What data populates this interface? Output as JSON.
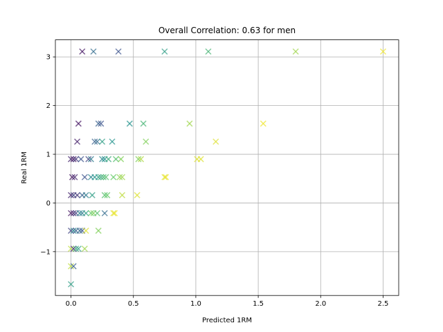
{
  "chart_data": {
    "type": "scatter",
    "title": "Overall Correlation: 0.63 for men",
    "xlabel": "Predicted 1RM",
    "ylabel": "Real 1RM",
    "xlim": [
      -0.125,
      2.625
    ],
    "ylim": [
      -1.9,
      3.35
    ],
    "xticks": [
      0.0,
      0.5,
      1.0,
      1.5,
      2.0,
      2.5
    ],
    "xtick_labels": [
      "0.0",
      "0.5",
      "1.0",
      "1.5",
      "2.0",
      "2.5"
    ],
    "yticks": [
      -1,
      0,
      1,
      2,
      3
    ],
    "ytick_labels": [
      "−1",
      "0",
      "1",
      "2",
      "3"
    ],
    "grid": true,
    "marker": "x",
    "colormap": "viridis",
    "points": [
      {
        "x": 0.09,
        "y": 3.11,
        "c": 0.05
      },
      {
        "x": 0.18,
        "y": 3.11,
        "c": 0.35
      },
      {
        "x": 0.38,
        "y": 3.11,
        "c": 0.25
      },
      {
        "x": 0.75,
        "y": 3.11,
        "c": 0.55
      },
      {
        "x": 1.1,
        "y": 3.11,
        "c": 0.65
      },
      {
        "x": 1.8,
        "y": 3.11,
        "c": 0.85
      },
      {
        "x": 2.5,
        "y": 3.11,
        "c": 0.98
      },
      {
        "x": 0.06,
        "y": 1.63,
        "c": 0.05
      },
      {
        "x": 0.22,
        "y": 1.63,
        "c": 0.3
      },
      {
        "x": 0.24,
        "y": 1.63,
        "c": 0.25
      },
      {
        "x": 0.47,
        "y": 1.63,
        "c": 0.5
      },
      {
        "x": 0.58,
        "y": 1.63,
        "c": 0.65
      },
      {
        "x": 0.95,
        "y": 1.63,
        "c": 0.85
      },
      {
        "x": 1.54,
        "y": 1.63,
        "c": 0.98
      },
      {
        "x": 0.05,
        "y": 1.26,
        "c": 0.08
      },
      {
        "x": 0.19,
        "y": 1.26,
        "c": 0.3
      },
      {
        "x": 0.21,
        "y": 1.26,
        "c": 0.35
      },
      {
        "x": 0.25,
        "y": 1.26,
        "c": 0.55
      },
      {
        "x": 0.33,
        "y": 1.26,
        "c": 0.5
      },
      {
        "x": 0.6,
        "y": 1.26,
        "c": 0.8
      },
      {
        "x": 1.16,
        "y": 1.26,
        "c": 0.95
      },
      {
        "x": 0.0,
        "y": 0.9,
        "c": 0.1
      },
      {
        "x": 0.02,
        "y": 0.9,
        "c": 0.05
      },
      {
        "x": 0.04,
        "y": 0.9,
        "c": 0.15
      },
      {
        "x": 0.08,
        "y": 0.9,
        "c": 0.25
      },
      {
        "x": 0.14,
        "y": 0.9,
        "c": 0.2
      },
      {
        "x": 0.16,
        "y": 0.9,
        "c": 0.4
      },
      {
        "x": 0.25,
        "y": 0.9,
        "c": 0.45
      },
      {
        "x": 0.27,
        "y": 0.9,
        "c": 0.5
      },
      {
        "x": 0.3,
        "y": 0.9,
        "c": 0.6
      },
      {
        "x": 0.36,
        "y": 0.9,
        "c": 0.7
      },
      {
        "x": 0.4,
        "y": 0.9,
        "c": 0.8
      },
      {
        "x": 0.54,
        "y": 0.9,
        "c": 0.8
      },
      {
        "x": 0.56,
        "y": 0.9,
        "c": 0.88
      },
      {
        "x": 1.01,
        "y": 0.9,
        "c": 0.95
      },
      {
        "x": 1.04,
        "y": 0.9,
        "c": 0.95
      },
      {
        "x": 0.01,
        "y": 0.53,
        "c": 0.05
      },
      {
        "x": 0.03,
        "y": 0.53,
        "c": 0.1
      },
      {
        "x": 0.11,
        "y": 0.53,
        "c": 0.25
      },
      {
        "x": 0.16,
        "y": 0.53,
        "c": 0.45
      },
      {
        "x": 0.19,
        "y": 0.53,
        "c": 0.5
      },
      {
        "x": 0.22,
        "y": 0.53,
        "c": 0.55
      },
      {
        "x": 0.24,
        "y": 0.53,
        "c": 0.6
      },
      {
        "x": 0.26,
        "y": 0.53,
        "c": 0.65
      },
      {
        "x": 0.28,
        "y": 0.53,
        "c": 0.7
      },
      {
        "x": 0.34,
        "y": 0.53,
        "c": 0.75
      },
      {
        "x": 0.39,
        "y": 0.53,
        "c": 0.82
      },
      {
        "x": 0.41,
        "y": 0.53,
        "c": 0.85
      },
      {
        "x": 0.75,
        "y": 0.53,
        "c": 0.95
      },
      {
        "x": 0.76,
        "y": 0.53,
        "c": 0.98
      },
      {
        "x": 0.0,
        "y": 0.16,
        "c": 0.1
      },
      {
        "x": 0.02,
        "y": 0.16,
        "c": 0.2
      },
      {
        "x": 0.05,
        "y": 0.16,
        "c": 0.15
      },
      {
        "x": 0.09,
        "y": 0.16,
        "c": 0.3
      },
      {
        "x": 0.12,
        "y": 0.16,
        "c": 0.4
      },
      {
        "x": 0.17,
        "y": 0.16,
        "c": 0.55
      },
      {
        "x": 0.27,
        "y": 0.16,
        "c": 0.7
      },
      {
        "x": 0.29,
        "y": 0.16,
        "c": 0.75
      },
      {
        "x": 0.41,
        "y": 0.16,
        "c": 0.9
      },
      {
        "x": 0.53,
        "y": 0.16,
        "c": 0.95
      },
      {
        "x": 0.0,
        "y": -0.21,
        "c": 0.05
      },
      {
        "x": 0.02,
        "y": -0.21,
        "c": 0.1
      },
      {
        "x": 0.04,
        "y": -0.21,
        "c": 0.2
      },
      {
        "x": 0.07,
        "y": -0.21,
        "c": 0.45
      },
      {
        "x": 0.09,
        "y": -0.21,
        "c": 0.4
      },
      {
        "x": 0.12,
        "y": -0.21,
        "c": 0.55
      },
      {
        "x": 0.16,
        "y": -0.21,
        "c": 0.75
      },
      {
        "x": 0.18,
        "y": -0.21,
        "c": 0.8
      },
      {
        "x": 0.21,
        "y": -0.21,
        "c": 0.7
      },
      {
        "x": 0.27,
        "y": -0.21,
        "c": 0.35
      },
      {
        "x": 0.34,
        "y": -0.21,
        "c": 0.95
      },
      {
        "x": 0.35,
        "y": -0.21,
        "c": 0.98
      },
      {
        "x": 0.0,
        "y": -0.57,
        "c": 0.2
      },
      {
        "x": 0.02,
        "y": -0.57,
        "c": 0.45
      },
      {
        "x": 0.04,
        "y": -0.57,
        "c": 0.3
      },
      {
        "x": 0.07,
        "y": -0.57,
        "c": 0.35
      },
      {
        "x": 0.09,
        "y": -0.57,
        "c": 0.25
      },
      {
        "x": 0.12,
        "y": -0.57,
        "c": 0.95
      },
      {
        "x": 0.22,
        "y": -0.57,
        "c": 0.8
      },
      {
        "x": 0.0,
        "y": -0.94,
        "c": 0.9
      },
      {
        "x": 0.02,
        "y": -0.94,
        "c": 0.1
      },
      {
        "x": 0.04,
        "y": -0.94,
        "c": 0.6
      },
      {
        "x": 0.06,
        "y": -0.94,
        "c": 0.55
      },
      {
        "x": 0.11,
        "y": -0.94,
        "c": 0.85
      },
      {
        "x": 0.0,
        "y": -1.3,
        "c": 0.9
      },
      {
        "x": 0.02,
        "y": -1.3,
        "c": 0.3
      },
      {
        "x": 0.0,
        "y": -1.67,
        "c": 0.55
      }
    ]
  }
}
